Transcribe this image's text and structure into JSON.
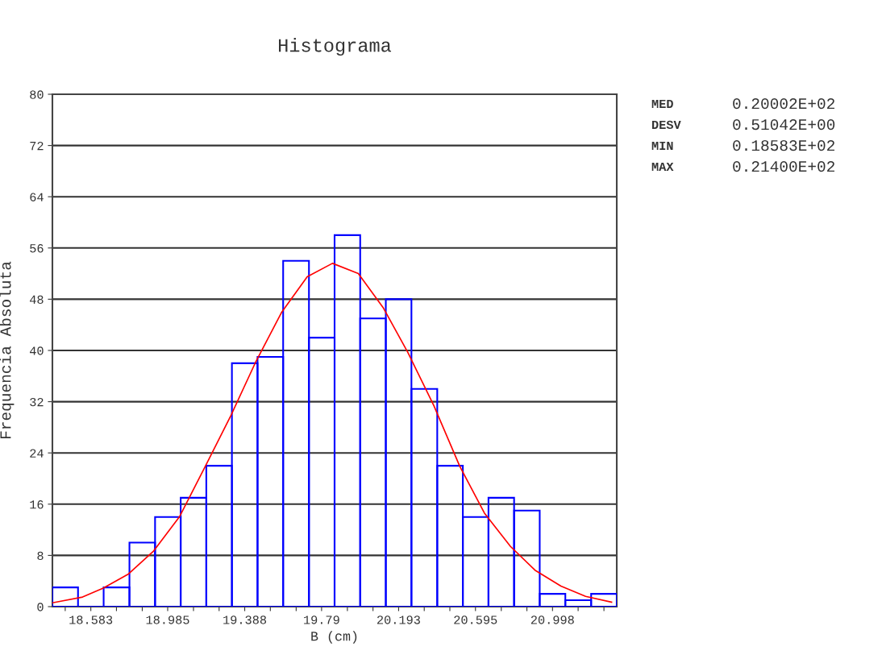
{
  "chart_data": {
    "type": "histogram",
    "title": "Histograma",
    "xlabel": "B (cm)",
    "ylabel": "Frequencia Absoluta",
    "bins": [
      18.382,
      18.516,
      18.65,
      18.785,
      18.919,
      19.053,
      19.187,
      19.321,
      19.455,
      19.589,
      19.724,
      19.858,
      19.992,
      20.126,
      20.26,
      20.395,
      20.529,
      20.663,
      20.797,
      20.931,
      21.065,
      21.2,
      21.334
    ],
    "values": [
      3,
      0,
      3,
      10,
      14,
      17,
      22,
      38,
      39,
      54,
      42,
      58,
      45,
      48,
      34,
      22,
      14,
      17,
      15,
      2,
      1,
      2
    ],
    "color": "#0000ff",
    "series": [
      {
        "type": "line",
        "color": "#ff0000",
        "x": [
          18.382,
          18.54,
          18.648,
          18.78,
          18.912,
          19.048,
          19.18,
          19.315,
          19.447,
          19.58,
          19.715,
          19.847,
          19.982,
          20.114,
          20.241,
          20.377,
          20.513,
          20.642,
          20.778,
          20.906,
          21.042,
          21.171,
          21.307
        ],
        "values": [
          0.6,
          1.5,
          2.9,
          5.1,
          8.7,
          14.1,
          21.8,
          29.8,
          38.3,
          45.9,
          51.5,
          53.6,
          52.0,
          46.6,
          39.7,
          31.4,
          21.9,
          14.6,
          9.4,
          5.7,
          3.2,
          1.6,
          0.7
        ]
      }
    ],
    "xlim": [
      18.382,
      21.334
    ],
    "xticks": [
      {
        "value": 18.449,
        "label": null
      },
      18.583,
      {
        "value": 18.717,
        "label": null
      },
      {
        "value": 18.852,
        "label": null
      },
      18.985,
      {
        "value": 19.12,
        "label": null
      },
      {
        "value": 19.254,
        "label": null
      },
      19.388,
      {
        "value": 19.522,
        "label": null
      },
      {
        "value": 19.657,
        "label": null
      },
      19.79,
      {
        "value": 19.925,
        "label": null
      },
      {
        "value": 20.059,
        "label": null
      },
      20.193,
      {
        "value": 20.327,
        "label": null
      },
      {
        "value": 20.461,
        "label": null
      },
      20.595,
      {
        "value": 20.73,
        "label": null
      },
      {
        "value": 20.864,
        "label": null
      },
      20.998,
      {
        "value": 21.132,
        "label": null
      },
      {
        "value": 21.267,
        "label": null
      }
    ],
    "ylim": [
      0,
      80
    ],
    "yticks": [
      0,
      8,
      16,
      24,
      32,
      40,
      48,
      56,
      64,
      72,
      80
    ],
    "grid": "y",
    "legend": false,
    "annotations": [
      "MED",
      "0.20002E+02",
      "DESV",
      "0.51042E+00",
      "MIN",
      "0.18583E+02",
      "MAX",
      "0.21400E+02"
    ]
  }
}
